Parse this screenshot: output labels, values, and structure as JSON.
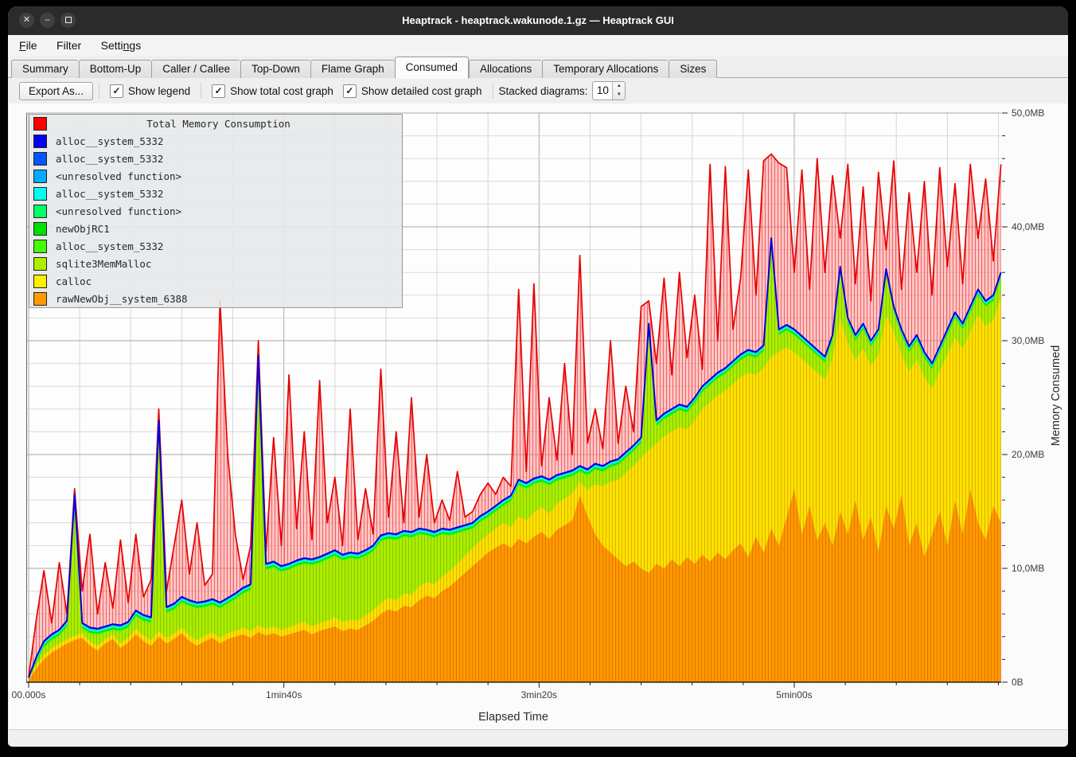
{
  "window": {
    "title": "Heaptrack - heaptrack.wakunode.1.gz — Heaptrack GUI",
    "controls": {
      "close": "✕",
      "minimize": "–",
      "maximize": ""
    }
  },
  "menubar": {
    "items": [
      {
        "label": "File",
        "mnemonic": "F"
      },
      {
        "label": "Filter",
        "mnemonic": ""
      },
      {
        "label": "Settings",
        "mnemonic": "n"
      }
    ]
  },
  "tabs": {
    "active": "Consumed",
    "items": [
      "Summary",
      "Bottom-Up",
      "Caller / Callee",
      "Top-Down",
      "Flame Graph",
      "Consumed",
      "Allocations",
      "Temporary Allocations",
      "Sizes"
    ]
  },
  "toolbar": {
    "export_label": "Export As...",
    "checkboxes": [
      {
        "label": "Show legend",
        "checked": true
      },
      {
        "label": "Show total cost graph",
        "checked": true
      },
      {
        "label": "Show detailed cost graph",
        "checked": true
      }
    ],
    "stacked_label": "Stacked diagrams:",
    "stacked_value": "10"
  },
  "chart_data": {
    "type": "area",
    "stacked": true,
    "t_step": 3,
    "unit": "MB",
    "x_axis": {
      "label": "Elapsed Time",
      "max": 381,
      "minor_step": 20,
      "major_step": 100,
      "ticks": [
        {
          "t": 0,
          "label": "00.000s"
        },
        {
          "t": 100,
          "label": "1min40s"
        },
        {
          "t": 200,
          "label": "3min20s"
        },
        {
          "t": 300,
          "label": "5min00s"
        }
      ]
    },
    "y_axis": {
      "label": "Memory Consumed",
      "max": 50,
      "minor_step": 2,
      "major_step": 10,
      "ticks": [
        {
          "v": 0,
          "label": "0B"
        },
        {
          "v": 10,
          "label": "10,0MB"
        },
        {
          "v": 20,
          "label": "20,0MB"
        },
        {
          "v": 30,
          "label": "30,0MB"
        },
        {
          "v": 40,
          "label": "40,0MB"
        },
        {
          "v": 50,
          "label": "50,0MB"
        }
      ]
    },
    "total": {
      "name": "Total Memory Consumption",
      "stroke": "#e60000",
      "fill": "rgba(255,128,128,0.45)",
      "hatch": "rgba(230,0,0,0.5)",
      "values": [
        0.5,
        5.5,
        9.8,
        5.2,
        10.5,
        6.0,
        17.0,
        8.0,
        13.0,
        6.0,
        10.5,
        6.5,
        12.5,
        7.0,
        13.0,
        7.5,
        9.0,
        24.0,
        8.0,
        12.0,
        16.0,
        9.5,
        14.0,
        8.5,
        9.5,
        33.5,
        20.0,
        13.0,
        9.0,
        12.0,
        30.0,
        11.5,
        21.5,
        12.0,
        27.0,
        13.5,
        22.0,
        12.5,
        26.5,
        14.0,
        18.0,
        12.0,
        24.0,
        12.5,
        17.0,
        13.0,
        27.5,
        14.5,
        22.0,
        14.0,
        25.0,
        14.5,
        20.0,
        14.0,
        16.0,
        14.2,
        18.5,
        14.5,
        15.0,
        16.5,
        17.5,
        16.5,
        18.0,
        17.2,
        34.5,
        18.5,
        35.0,
        19.0,
        25.0,
        19.5,
        28.0,
        20.0,
        37.5,
        21.0,
        24.0,
        20.5,
        30.0,
        21.0,
        26.0,
        22.0,
        33.0,
        33.5,
        28.0,
        35.5,
        27.0,
        36.0,
        28.5,
        34.0,
        27.5,
        45.5,
        30.0,
        45.3,
        31.0,
        35.5,
        45.0,
        34.0,
        45.8,
        46.4,
        45.6,
        45.2,
        36.0,
        45.0,
        34.5,
        46.0,
        36.0,
        44.5,
        39.0,
        45.5,
        35.0,
        43.5,
        33.5,
        44.8,
        38.0,
        45.8,
        34.5,
        43.0,
        36.0,
        44.0,
        34.0,
        45.2,
        36.5,
        43.8,
        35.0,
        45.5,
        39.0,
        44.2,
        37.0,
        45.5
      ]
    },
    "series": [
      {
        "name": "rawNewObj__system_6388",
        "color": "#ff9900",
        "hatch": "#e07800",
        "values": [
          0.2,
          1.2,
          2.0,
          2.6,
          3.0,
          3.4,
          3.7,
          3.9,
          3.2,
          2.8,
          3.4,
          3.8,
          3.0,
          3.5,
          4.2,
          3.6,
          3.2,
          4.0,
          3.4,
          3.8,
          4.3,
          3.6,
          3.2,
          3.6,
          3.9,
          3.4,
          3.8,
          4.0,
          4.2,
          3.9,
          4.4,
          4.1,
          4.3,
          4.0,
          4.2,
          4.4,
          4.6,
          4.2,
          4.5,
          4.7,
          4.9,
          4.5,
          4.7,
          4.6,
          5.0,
          5.4,
          6.0,
          6.4,
          6.2,
          6.7,
          6.6,
          7.2,
          7.6,
          7.4,
          8.0,
          8.4,
          9.0,
          9.6,
          10.2,
          10.8,
          11.4,
          11.8,
          12.2,
          11.8,
          12.6,
          12.2,
          12.8,
          13.2,
          12.6,
          13.4,
          13.8,
          14.2,
          16.4,
          14.6,
          13.0,
          12.0,
          11.4,
          10.8,
          10.2,
          10.6,
          10.0,
          9.6,
          10.4,
          10.0,
          10.8,
          10.2,
          11.0,
          10.4,
          11.2,
          10.6,
          11.4,
          10.8,
          11.6,
          12.2,
          11.0,
          12.8,
          11.4,
          13.5,
          12.0,
          14.5,
          17.0,
          13.0,
          15.5,
          12.5,
          14.0,
          12.0,
          15.0,
          13.0,
          16.0,
          12.5,
          14.5,
          11.5,
          15.5,
          13.5,
          16.5,
          12.0,
          14.0,
          11.0,
          13.0,
          15.0,
          12.0,
          16.0,
          13.0,
          17.0,
          14.0,
          12.5,
          15.5,
          14.0
        ]
      },
      {
        "name": "calloc",
        "color": "#ffe100",
        "hatch": "#d9b300",
        "values": [
          0.3,
          1.5,
          2.4,
          3.0,
          3.4,
          3.8,
          4.1,
          4.3,
          3.6,
          3.2,
          3.8,
          4.2,
          3.4,
          3.9,
          4.7,
          4.1,
          3.7,
          4.5,
          3.9,
          4.3,
          4.8,
          4.1,
          3.7,
          4.1,
          4.4,
          3.9,
          4.3,
          4.5,
          4.8,
          4.5,
          5.0,
          4.7,
          4.9,
          4.6,
          4.8,
          5.1,
          5.3,
          4.9,
          5.2,
          5.4,
          5.7,
          5.3,
          5.5,
          5.4,
          5.9,
          6.3,
          7.0,
          7.4,
          7.2,
          7.8,
          7.7,
          8.4,
          8.8,
          8.6,
          9.3,
          9.8,
          10.4,
          11.1,
          11.8,
          12.4,
          13.0,
          13.5,
          14.0,
          13.6,
          14.6,
          14.2,
          14.9,
          15.4,
          14.8,
          15.7,
          16.1,
          16.6,
          17.6,
          16.9,
          17.4,
          17.2,
          17.6,
          17.8,
          18.4,
          19.0,
          19.7,
          20.4,
          21.0,
          21.6,
          22.0,
          22.4,
          22.2,
          23.0,
          24.0,
          24.6,
          25.2,
          25.6,
          26.2,
          26.8,
          27.2,
          27.0,
          27.6,
          28.6,
          29.0,
          29.4,
          29.0,
          28.4,
          27.8,
          27.2,
          26.6,
          28.5,
          32.0,
          29.8,
          28.3,
          29.3,
          27.8,
          28.8,
          32.2,
          30.8,
          28.8,
          27.3,
          28.3,
          26.8,
          25.8,
          27.3,
          28.8,
          30.3,
          29.3,
          30.8,
          32.3,
          31.3,
          31.8,
          33.8
        ]
      },
      {
        "name": "sqlite3MemMalloc",
        "color": "#aaee00",
        "hatch": "#8cc400",
        "offset_mb": 0.55
      },
      {
        "name": "alloc__system_5332",
        "color": "#44ff00",
        "offset_mb": 0.44
      },
      {
        "name": "newObjRC1",
        "color": "#00e000",
        "offset_mb": 0.33
      },
      {
        "name": "<unresolved function>",
        "color": "#00ff66",
        "offset_mb": 0.24
      },
      {
        "name": "alloc__system_5332",
        "color": "#00ffee",
        "offset_mb": 0.15
      },
      {
        "name": "<unresolved function>",
        "color": "#00aaff",
        "offset_mb": 0.08
      },
      {
        "name": "alloc__system_5332",
        "color": "#0055ff",
        "offset_mb": 0.0
      },
      {
        "name": "alloc__system_5332",
        "color": "#0000dd",
        "role": "line",
        "values": [
          0.4,
          2.2,
          3.6,
          4.2,
          4.6,
          5.4,
          16.5,
          5.2,
          4.8,
          4.7,
          4.9,
          5.1,
          5.0,
          5.3,
          6.3,
          5.9,
          5.7,
          23.0,
          6.6,
          6.9,
          7.5,
          7.2,
          7.0,
          7.1,
          7.3,
          7.0,
          7.4,
          7.8,
          8.3,
          8.6,
          28.7,
          10.4,
          10.6,
          10.2,
          10.4,
          10.7,
          10.9,
          10.8,
          11.0,
          11.3,
          11.6,
          11.2,
          11.4,
          11.3,
          11.6,
          12.0,
          12.9,
          13.1,
          13.0,
          13.3,
          13.2,
          13.5,
          13.4,
          13.2,
          13.5,
          13.4,
          13.6,
          13.8,
          14.0,
          14.6,
          15.0,
          15.5,
          16.0,
          16.4,
          17.8,
          17.5,
          17.9,
          18.1,
          17.8,
          18.2,
          18.4,
          18.6,
          19.0,
          18.7,
          19.2,
          19.0,
          19.4,
          19.6,
          20.2,
          20.8,
          21.5,
          31.5,
          23.0,
          23.6,
          24.0,
          24.4,
          24.2,
          25.0,
          26.0,
          26.6,
          27.2,
          27.6,
          28.2,
          28.8,
          29.2,
          29.0,
          29.6,
          39.0,
          31.0,
          31.4,
          31.0,
          30.4,
          29.8,
          29.2,
          28.6,
          30.5,
          36.5,
          32.0,
          30.5,
          31.5,
          30.0,
          31.0,
          36.3,
          33.0,
          31.0,
          29.5,
          30.5,
          29.0,
          28.0,
          29.5,
          31.0,
          32.5,
          31.5,
          33.0,
          34.5,
          33.5,
          34.0,
          36.0
        ]
      }
    ],
    "legend": {
      "title": "Total Memory Consumption",
      "title_color": "#ff0000",
      "items": [
        {
          "label": "alloc__system_5332",
          "color": "#0000ee"
        },
        {
          "label": "alloc__system_5332",
          "color": "#0055ff"
        },
        {
          "label": "<unresolved function>",
          "color": "#00aaff"
        },
        {
          "label": "alloc__system_5332",
          "color": "#00ffee"
        },
        {
          "label": "<unresolved function>",
          "color": "#00ff66"
        },
        {
          "label": "newObjRC1",
          "color": "#00e000"
        },
        {
          "label": "alloc__system_5332",
          "color": "#44ff00"
        },
        {
          "label": "sqlite3MemMalloc",
          "color": "#aaee00"
        },
        {
          "label": "calloc",
          "color": "#ffee00"
        },
        {
          "label": "rawNewObj__system_6388",
          "color": "#ff9900"
        }
      ]
    }
  }
}
